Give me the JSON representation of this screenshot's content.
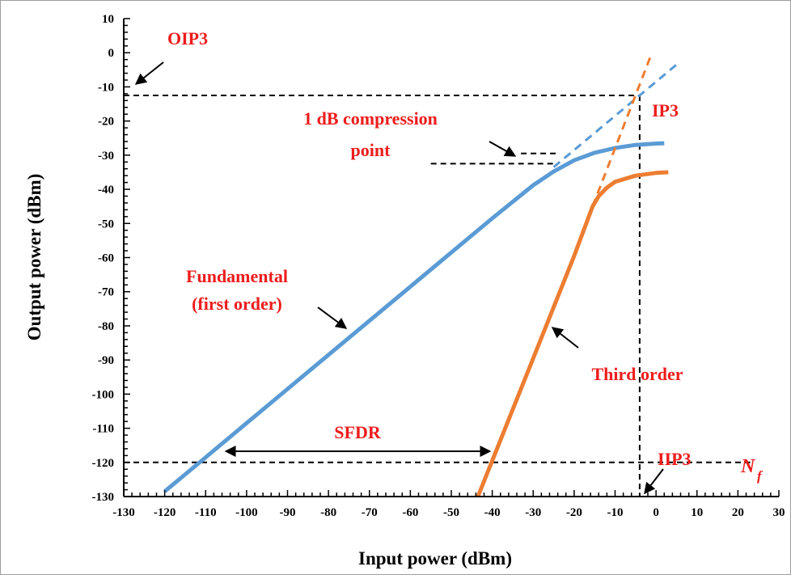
{
  "chart_data": {
    "type": "line",
    "title": "",
    "xlabel": "Input power (dBm)",
    "ylabel": "Output power (dBm)",
    "xlim": [
      -130,
      30
    ],
    "ylim": [
      -130,
      10
    ],
    "x_ticks": [
      -130,
      -120,
      -110,
      -100,
      -90,
      -80,
      -70,
      -60,
      -50,
      -40,
      -30,
      -20,
      -10,
      0,
      10,
      20,
      30
    ],
    "y_ticks": [
      10,
      0,
      -10,
      -20,
      -30,
      -40,
      -50,
      -60,
      -70,
      -80,
      -90,
      -100,
      -110,
      -120,
      -130
    ],
    "grid": false,
    "colors": {
      "fundamental": "#5b9bd5",
      "third_order": "#ed7d31",
      "annotation": "#ee1c1c",
      "reference": "#000000"
    },
    "series": [
      {
        "id": "fundamental",
        "style": "solid",
        "x": [
          -120,
          -110,
          -100,
          -90,
          -80,
          -70,
          -60,
          -50,
          -40,
          -30,
          -25,
          -20,
          -15,
          -10,
          -5,
          0,
          2
        ],
        "y": [
          -128.5,
          -118.5,
          -108.5,
          -98.5,
          -88.5,
          -78.5,
          -68.5,
          -58.5,
          -48.5,
          -38.8,
          -34.8,
          -31.5,
          -29.3,
          -27.9,
          -27,
          -26.6,
          -26.5
        ]
      },
      {
        "id": "fundamental-extrapolation",
        "style": "dashed",
        "x": [
          -25,
          5
        ],
        "y": [
          -33.5,
          -3.5
        ]
      },
      {
        "id": "third-order",
        "style": "solid",
        "x": [
          -43.5,
          -40,
          -35,
          -30,
          -25,
          -20,
          -15.5,
          -14,
          -12,
          -10,
          -5,
          0,
          3
        ],
        "y": [
          -130,
          -119.5,
          -104.5,
          -89.5,
          -74.5,
          -59.5,
          -45,
          -42,
          -39.5,
          -37.8,
          -36,
          -35.2,
          -35
        ]
      },
      {
        "id": "third-order-extrapolation",
        "style": "dashed",
        "x": [
          -15.5,
          -1
        ],
        "y": [
          -45,
          0
        ]
      }
    ],
    "reference_lines": [
      {
        "id": "oip3-line",
        "points": [
          [
            -130,
            -12.5
          ],
          [
            -4,
            -12.5
          ]
        ]
      },
      {
        "id": "iip3-line",
        "points": [
          [
            -4,
            -12.5
          ],
          [
            -4,
            -130
          ]
        ]
      },
      {
        "id": "noise-floor-line",
        "points": [
          [
            -130,
            -120
          ],
          [
            23,
            -120
          ]
        ]
      },
      {
        "id": "compression-line-1",
        "points": [
          [
            -55,
            -32.5
          ],
          [
            -25,
            -32.5
          ]
        ]
      },
      {
        "id": "compression-line-2",
        "points": [
          [
            -33,
            -29.5
          ],
          [
            -24,
            -29.5
          ]
        ]
      }
    ],
    "annotations": {
      "oip3": "OIP3",
      "ip3": "IP3",
      "compression_1": "1 dB compression",
      "compression_2": "point",
      "fundamental_1": "Fundamental",
      "fundamental_2": "(first order)",
      "third_order": "Third order",
      "sfdr": "SFDR",
      "iip3": "IIP3",
      "nf_main": "N",
      "nf_sub": "f"
    }
  }
}
